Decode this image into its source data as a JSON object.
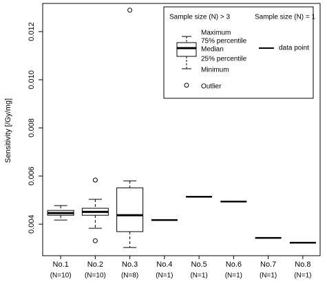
{
  "chart_data": {
    "type": "box",
    "y_label": "Sensitivity [/Gy/mg]",
    "categories": [
      "No.1",
      "No.2",
      "No.3",
      "No.4",
      "No.5",
      "No.6",
      "No.7",
      "No.8"
    ],
    "sample_sizes": [
      "(N=10)",
      "(N=10)",
      "(N=8)",
      "(N=1)",
      "(N=1)",
      "(N=1)",
      "(N=1)",
      "(N=1)"
    ],
    "boxes": [
      {
        "min": 0.00417,
        "q1": 0.00437,
        "median": 0.00446,
        "q3": 0.00457,
        "max": 0.00477,
        "outliers": []
      },
      {
        "min": 0.00383,
        "q1": 0.00437,
        "median": 0.00451,
        "q3": 0.00466,
        "max": 0.00503,
        "outliers": [
          0.00583,
          0.00331
        ]
      },
      {
        "min": 0.00303,
        "q1": 0.00369,
        "median": 0.00437,
        "q3": 0.00551,
        "max": 0.0058,
        "outliers": [
          0.01289
        ]
      },
      null,
      null,
      null,
      null,
      null
    ],
    "points": [
      null,
      null,
      null,
      0.00417,
      0.00514,
      0.00494,
      0.00343,
      0.00323
    ],
    "color": "#000000",
    "ylim": [
      0.00269,
      0.01317
    ],
    "yticks": [
      0.004,
      0.006,
      0.008,
      {
        "value": 0.01,
        "label": "0.010"
      },
      0.012
    ],
    "legend": {
      "position": "upper right",
      "box_title": "Sample size (N) > 3",
      "point_title": "Sample size (N) = 1",
      "maximum": "Maximum",
      "q3": "75% percentile",
      "median": "Median",
      "q1": "25% percentile",
      "minimum": "Minimum",
      "outlier": "Outlier",
      "point": "data point"
    }
  }
}
